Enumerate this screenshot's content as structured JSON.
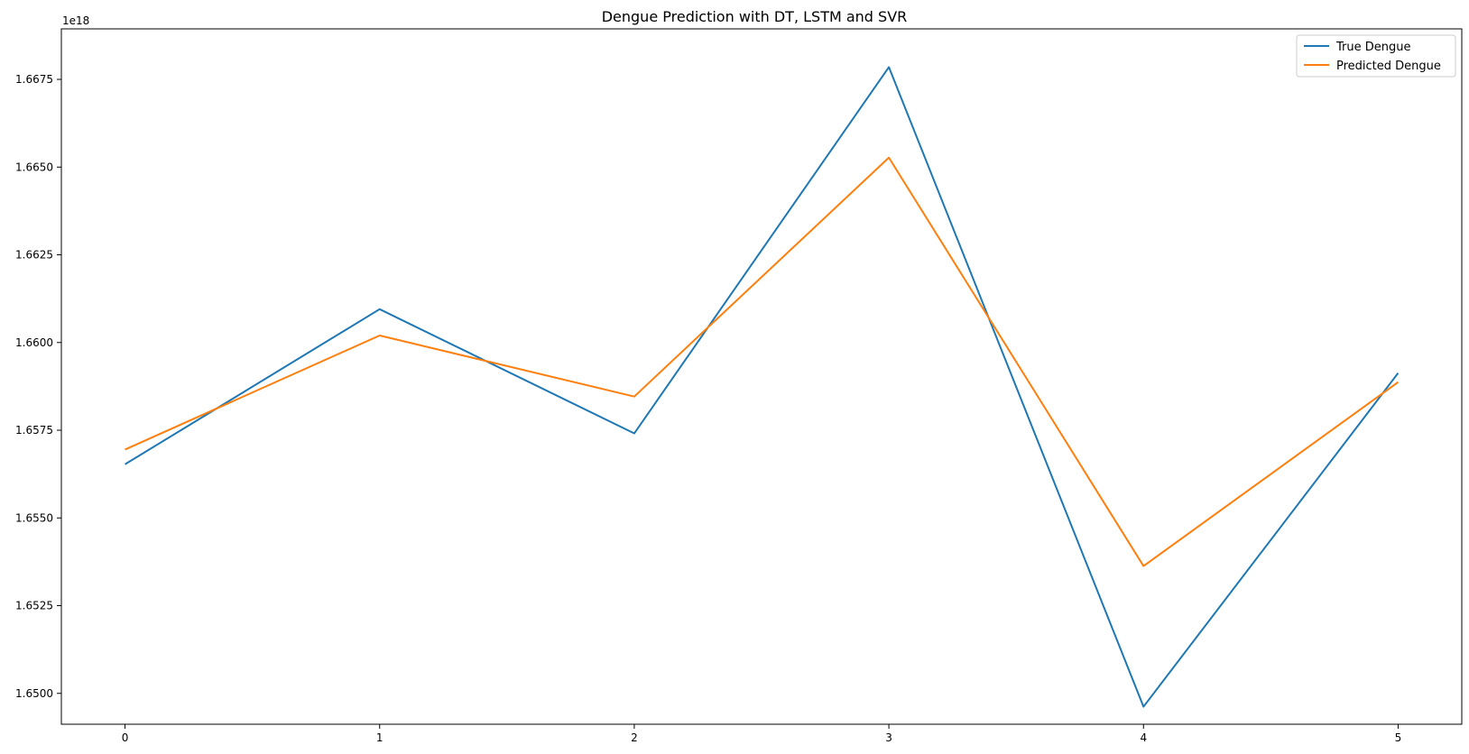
{
  "chart_data": {
    "type": "line",
    "title": "Dengue Prediction with DT, LSTM and SVR",
    "xlabel": "",
    "ylabel": "",
    "y_offset_label": "1e18",
    "x": [
      0,
      1,
      2,
      3,
      4,
      5
    ],
    "x_ticks": [
      "0",
      "1",
      "2",
      "3",
      "4",
      "5"
    ],
    "xlim": [
      -0.25,
      5.25
    ],
    "y_ticks": [
      "1.6500",
      "1.6525",
      "1.6550",
      "1.6575",
      "1.6600",
      "1.6625",
      "1.6650",
      "1.6675"
    ],
    "y_tick_values": [
      1.65,
      1.6525,
      1.655,
      1.6575,
      1.66,
      1.6625,
      1.665,
      1.6675
    ],
    "ylim": [
      1.64912,
      1.66894
    ],
    "grid": false,
    "legend_position": "upper right",
    "series": [
      {
        "name": "True Dengue",
        "color": "#1f77b4",
        "values": [
          1.65653,
          1.66095,
          1.65741,
          1.66785,
          1.64962,
          1.65913
        ]
      },
      {
        "name": "Predicted Dengue",
        "color": "#ff7f0e",
        "values": [
          1.65695,
          1.6602,
          1.65846,
          1.66527,
          1.65363,
          1.65887
        ]
      }
    ]
  }
}
